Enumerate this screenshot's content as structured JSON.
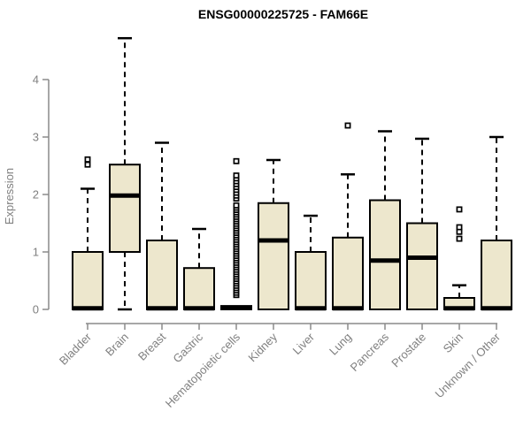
{
  "chart_data": {
    "type": "boxplot",
    "title": "ENSG00000225725 - FAM66E",
    "ylabel": "Expression",
    "xlabel": "",
    "grid": false,
    "legend": "none",
    "y_ticks": [
      0,
      1,
      2,
      3,
      4
    ],
    "ylim": [
      -0.25,
      4.9
    ],
    "categories": [
      "Bladder",
      "Brain",
      "Breast",
      "Gastric",
      "Hematopoietic cells",
      "Kidney",
      "Liver",
      "Lung",
      "Pancreas",
      "Prostate",
      "Skin",
      "Unknown / Other"
    ],
    "series": [
      {
        "category": "Bladder",
        "low": 0,
        "q1": 0,
        "median": 0.02,
        "q3": 1.0,
        "high": 2.1,
        "outliers": [
          2.52,
          2.61
        ]
      },
      {
        "category": "Brain",
        "low": 0,
        "q1": 1.0,
        "median": 1.98,
        "q3": 2.52,
        "high": 4.72,
        "outliers": []
      },
      {
        "category": "Breast",
        "low": 0,
        "q1": 0,
        "median": 0.02,
        "q3": 1.2,
        "high": 2.9,
        "outliers": []
      },
      {
        "category": "Gastric",
        "low": 0,
        "q1": 0,
        "median": 0.02,
        "q3": 0.72,
        "high": 1.4,
        "outliers": []
      },
      {
        "category": "Hematopoietic cells",
        "low": 0,
        "q1": 0,
        "median": 0.03,
        "q3": 0.06,
        "high": 0.06,
        "outliers": [
          0.25,
          0.29,
          0.33,
          0.37,
          0.41,
          0.45,
          0.49,
          0.53,
          0.57,
          0.61,
          0.65,
          0.69,
          0.73,
          0.77,
          0.81,
          0.85,
          0.89,
          0.93,
          0.97,
          1.01,
          1.05,
          1.09,
          1.13,
          1.17,
          1.21,
          1.25,
          1.29,
          1.33,
          1.37,
          1.41,
          1.45,
          1.49,
          1.53,
          1.57,
          1.61,
          1.65,
          1.69,
          1.73,
          1.77,
          1.81,
          1.93,
          1.98,
          2.03,
          2.08,
          2.13,
          2.18,
          2.23,
          2.28,
          2.33,
          2.58
        ]
      },
      {
        "category": "Kidney",
        "low": 0,
        "q1": 0,
        "median": 1.2,
        "q3": 1.85,
        "high": 2.6,
        "outliers": []
      },
      {
        "category": "Liver",
        "low": 0,
        "q1": 0,
        "median": 0.02,
        "q3": 1.0,
        "high": 1.63,
        "outliers": []
      },
      {
        "category": "Lung",
        "low": 0,
        "q1": 0,
        "median": 0.02,
        "q3": 1.25,
        "high": 2.35,
        "outliers": [
          3.2
        ]
      },
      {
        "category": "Pancreas",
        "low": 0,
        "q1": 0,
        "median": 0.85,
        "q3": 1.9,
        "high": 3.1,
        "outliers": []
      },
      {
        "category": "Prostate",
        "low": 0,
        "q1": 0,
        "median": 0.9,
        "q3": 1.5,
        "high": 2.97,
        "outliers": []
      },
      {
        "category": "Skin",
        "low": 0,
        "q1": 0,
        "median": 0.02,
        "q3": 0.2,
        "high": 0.42,
        "outliers": [
          1.23,
          1.35,
          1.43,
          1.74
        ]
      },
      {
        "category": "Unknown / Other",
        "low": 0,
        "q1": 0,
        "median": 0.02,
        "q3": 1.2,
        "high": 3.0,
        "outliers": []
      }
    ],
    "colors": {
      "box_fill": "#ede7cd",
      "box_border": "#000000",
      "median": "#000000",
      "whisker": "#000000",
      "outlier": "#000000",
      "axis": "#8a8a8a",
      "tick_label": "#808080",
      "title": "#000000",
      "background": "#ffffff"
    }
  }
}
